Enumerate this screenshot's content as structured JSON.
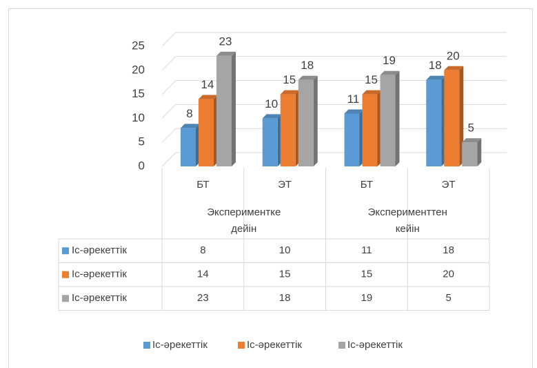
{
  "chart_data": {
    "type": "bar",
    "categories": [
      "БТ",
      "ЭТ",
      "БТ",
      "ЭТ"
    ],
    "groups": [
      "Экспериментке дейін",
      "Эксперименттен кейін"
    ],
    "series": [
      {
        "name": "Іс-әрекеттік",
        "color": "#5b9bd5",
        "values": [
          8,
          10,
          11,
          18
        ]
      },
      {
        "name": "Іс-әрекеттік",
        "color": "#ed7d31",
        "values": [
          14,
          15,
          15,
          20
        ]
      },
      {
        "name": "Іс-әрекеттік",
        "color": "#a5a5a5",
        "values": [
          23,
          18,
          19,
          5
        ]
      }
    ],
    "ylim": [
      0,
      25
    ],
    "yticks": [
      0,
      5,
      10,
      15,
      20,
      25
    ],
    "grid": true,
    "data_labels": true,
    "data_table": true,
    "legend": "bottom"
  }
}
